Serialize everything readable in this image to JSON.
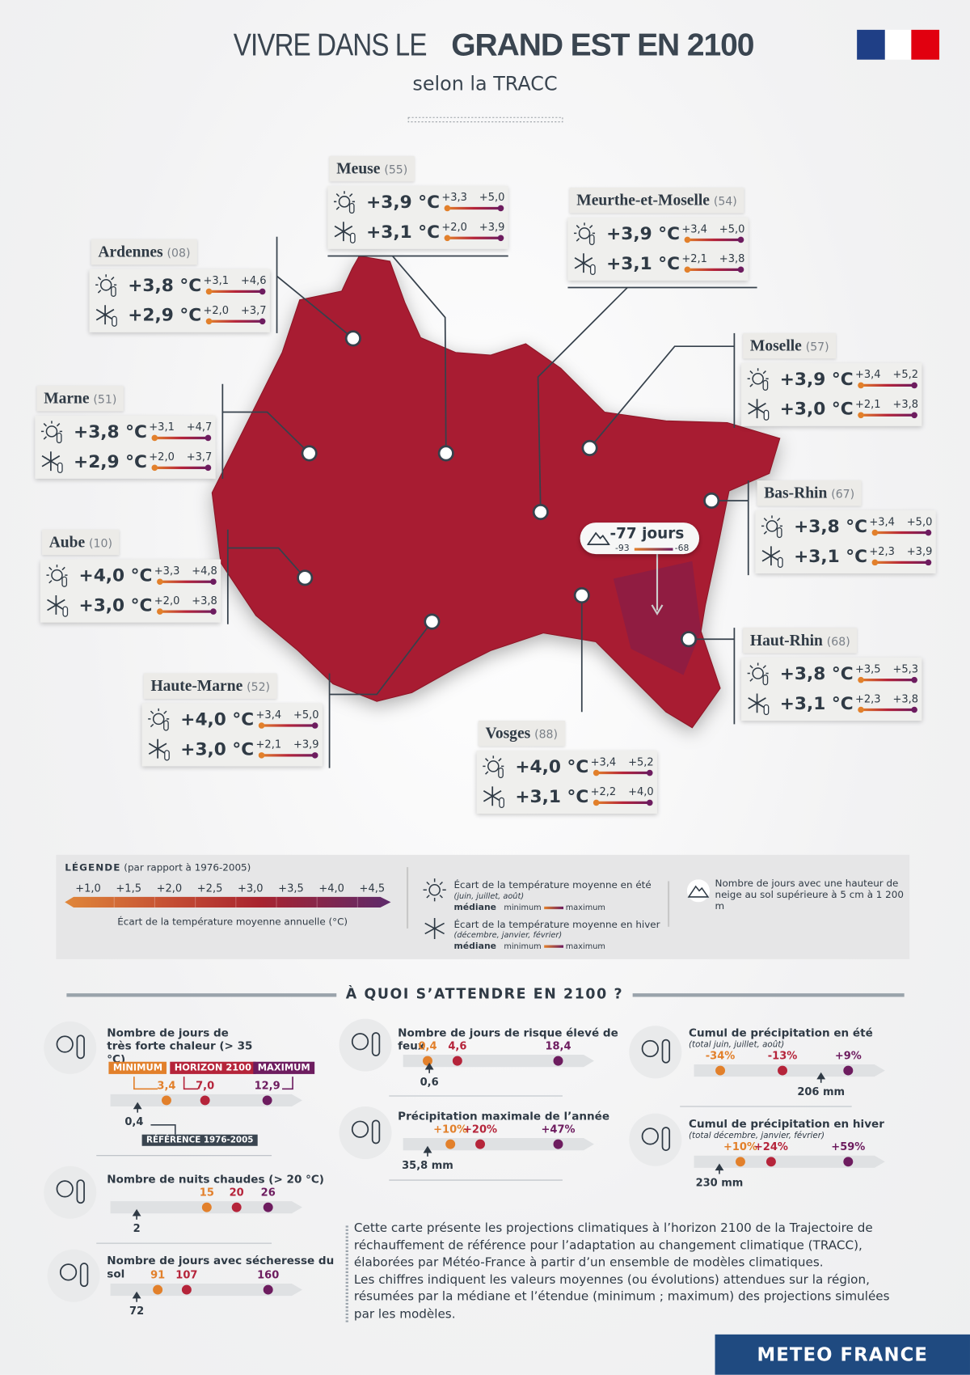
{
  "header": {
    "title_light": "VIVRE DANS LE",
    "title_bold": "GRAND EST EN 2100",
    "subtitle": "selon la TRACC"
  },
  "departments": [
    {
      "name": "Meuse",
      "code": "(55)",
      "summer": {
        "median": "+3,9 °C",
        "min": "+3,3",
        "max": "+5,0"
      },
      "winter": {
        "median": "+3,1 °C",
        "min": "+2,0",
        "max": "+3,9"
      }
    },
    {
      "name": "Meurthe-et-Moselle",
      "code": "(54)",
      "summer": {
        "median": "+3,9 °C",
        "min": "+3,4",
        "max": "+5,0"
      },
      "winter": {
        "median": "+3,1 °C",
        "min": "+2,1",
        "max": "+3,8"
      }
    },
    {
      "name": "Ardennes",
      "code": "(08)",
      "summer": {
        "median": "+3,8 °C",
        "min": "+3,1",
        "max": "+4,6"
      },
      "winter": {
        "median": "+2,9 °C",
        "min": "+2,0",
        "max": "+3,7"
      }
    },
    {
      "name": "Moselle",
      "code": "(57)",
      "summer": {
        "median": "+3,9 °C",
        "min": "+3,4",
        "max": "+5,2"
      },
      "winter": {
        "median": "+3,0 °C",
        "min": "+2,1",
        "max": "+3,8"
      }
    },
    {
      "name": "Marne",
      "code": "(51)",
      "summer": {
        "median": "+3,8 °C",
        "min": "+3,1",
        "max": "+4,7"
      },
      "winter": {
        "median": "+2,9 °C",
        "min": "+2,0",
        "max": "+3,7"
      }
    },
    {
      "name": "Bas-Rhin",
      "code": "(67)",
      "summer": {
        "median": "+3,8 °C",
        "min": "+3,4",
        "max": "+5,0"
      },
      "winter": {
        "median": "+3,1 °C",
        "min": "+2,3",
        "max": "+3,9"
      }
    },
    {
      "name": "Aube",
      "code": "(10)",
      "summer": {
        "median": "+4,0 °C",
        "min": "+3,3",
        "max": "+4,8"
      },
      "winter": {
        "median": "+3,0 °C",
        "min": "+2,0",
        "max": "+3,8"
      }
    },
    {
      "name": "Haute-Marne",
      "code": "(52)",
      "summer": {
        "median": "+4,0 °C",
        "min": "+3,4",
        "max": "+5,0"
      },
      "winter": {
        "median": "+3,0 °C",
        "min": "+2,1",
        "max": "+3,9"
      }
    },
    {
      "name": "Haut-Rhin",
      "code": "(68)",
      "summer": {
        "median": "+3,8 °C",
        "min": "+3,5",
        "max": "+5,3"
      },
      "winter": {
        "median": "+3,1 °C",
        "min": "+2,3",
        "max": "+3,8"
      }
    },
    {
      "name": "Vosges",
      "code": "(88)",
      "summer": {
        "median": "+4,0 °C",
        "min": "+3,4",
        "max": "+5,2"
      },
      "winter": {
        "median": "+3,1 °C",
        "min": "+2,2",
        "max": "+4,0"
      }
    }
  ],
  "snow": {
    "value": "-77 jours",
    "min": "-93",
    "max": "-68"
  },
  "legend": {
    "title": "LÉGENDE",
    "note": "(par rapport à 1976-2005)",
    "scale": [
      "+1,0",
      "+1,5",
      "+2,0",
      "+2,5",
      "+3,0",
      "+3,5",
      "+4,0",
      "+4,5"
    ],
    "scale_caption": "Écart de la température moyenne annuelle (°C)",
    "summer_label": "Écart de la température moyenne en été",
    "summer_months": "(juin, juillet, août)",
    "winter_label": "Écart de la température moyenne en hiver",
    "winter_months": "(décembre, janvier, février)",
    "median": "médiane",
    "minimum": "minimum",
    "maximum": "maximum",
    "snow_label": "Nombre de jours avec une hauteur de neige au sol supérieure à 5 cm à 1 200 m"
  },
  "section_title": "À QUOI S’ATTENDRE EN 2100 ?",
  "tags": {
    "minimum": "MINIMUM",
    "horizon": "HORIZON 2100",
    "maximum": "MAXIMUM",
    "reference": "RÉFÉRENCE 1976-2005"
  },
  "indicators": [
    {
      "title": "Nombre de jours de très forte chaleur (> 35 °C)",
      "min": "3,4",
      "median": "7,0",
      "max": "12,9",
      "reference": "0,4"
    },
    {
      "title": "Nombre de nuits chaudes (> 20 °C)",
      "min": "15",
      "median": "20",
      "max": "26",
      "reference": "2"
    },
    {
      "title": "Nombre de jours avec sécheresse du sol",
      "min": "91",
      "median": "107",
      "max": "160",
      "reference": "72"
    },
    {
      "title": "Nombre de jours de risque élevé de feux",
      "min": "0,4",
      "median": "4,6",
      "max": "18,4",
      "reference": "0,6"
    },
    {
      "title": "Précipitation maximale de l’année",
      "min": "+10%",
      "median": "+20%",
      "max": "+47%",
      "reference": "35,8 mm"
    },
    {
      "title": "Cumul de précipitation en été",
      "subtitle": "(total juin, juillet, août)",
      "min": "-34%",
      "median": "-13%",
      "max": "+9%",
      "reference": "206 mm"
    },
    {
      "title": "Cumul de précipitation en hiver",
      "subtitle": "(total décembre, janvier, février)",
      "min": "+10%",
      "median": "+24%",
      "max": "+59%",
      "reference": "230 mm"
    }
  ],
  "description": [
    "Cette carte présente les projections climatiques à l’horizon 2100 de la Trajectoire de réchauffement de référence pour l’adaptation au changement climatique (TRACC), élaborées par Météo-France à partir d’un ensemble de modèles climatiques.",
    "Les chiffres indiquent les valeurs moyennes (ou évolutions) attendues sur la région, résumées par la médiane et l’étendue (minimum ; maximum) des projections simulées par les modèles."
  ],
  "footer": "METEO FRANCE"
}
